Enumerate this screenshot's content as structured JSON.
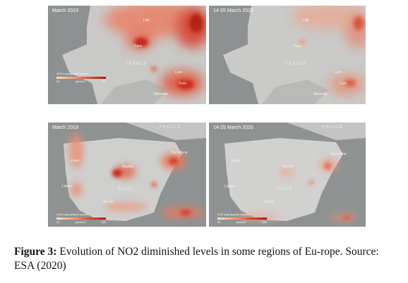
{
  "figure": {
    "panels": [
      {
        "title": "March 2019",
        "cities": [
          "Lille",
          "Paris",
          "Lyon",
          "Marseille",
          "Turin"
        ],
        "country": "FRANCE",
        "legend": {
          "title": "NO2 tropospheric column",
          "min": "25",
          "unit": "µmol/m²",
          "max": "150"
        }
      },
      {
        "title": "14-25 March 2020",
        "cities": [
          "Lille",
          "Paris",
          "Lyon",
          "Marseille",
          "Turin"
        ],
        "country": "FRANCE"
      },
      {
        "title": "March 2019",
        "cities": [
          "Madrid",
          "Barcelona",
          "Porto",
          "Lisbon",
          "Seville"
        ],
        "country": "SPAIN",
        "country2": "FRANCE",
        "legend": {
          "title": "NO2 tropospheric column",
          "min": "25",
          "unit": "µmol/m²",
          "max": "150"
        }
      },
      {
        "title": "14-25 March 2020",
        "cities": [
          "Madrid",
          "Barcelona",
          "Porto",
          "Lisbon",
          "Seville"
        ],
        "country": "SPAIN",
        "country2": "FRANCE",
        "legend": {
          "title": "NO2 tropospheric column",
          "min": "25",
          "unit": "µmol/m²",
          "max": "150"
        }
      }
    ]
  },
  "caption": {
    "label": "Figure 3:",
    "text": " Evolution of NO2 diminished levels in some regions of Eu-rope. Source: ESA (2020)"
  }
}
